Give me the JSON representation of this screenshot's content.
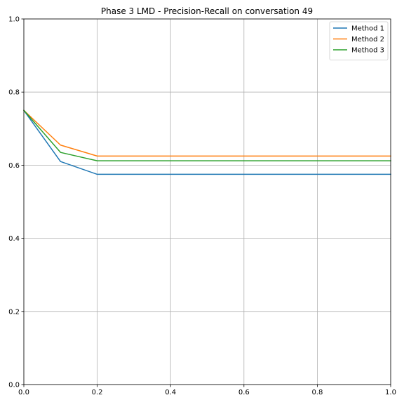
{
  "chart_data": {
    "type": "line",
    "title": "Phase 3 LMD - Precision-Recall on conversation 49",
    "xlabel": "",
    "ylabel": "",
    "xlim": [
      0,
      1
    ],
    "ylim": [
      0,
      1
    ],
    "grid": true,
    "legend_position": "top-right",
    "x_ticks": [
      "0.0",
      "0.2",
      "0.4",
      "0.6",
      "0.8",
      "1.0"
    ],
    "y_ticks": [
      "0.0",
      "0.2",
      "0.4",
      "0.6",
      "0.8",
      "1.0"
    ],
    "series": [
      {
        "name": "Method 1",
        "color": "#1f77b4",
        "x": [
          0.0,
          0.1,
          0.2,
          0.3,
          0.4,
          0.5,
          0.6,
          0.7,
          0.8,
          0.9,
          1.0
        ],
        "y": [
          0.75,
          0.61,
          0.575,
          0.575,
          0.575,
          0.575,
          0.575,
          0.575,
          0.575,
          0.575,
          0.575
        ]
      },
      {
        "name": "Method 2",
        "color": "#ff7f0e",
        "x": [
          0.0,
          0.1,
          0.2,
          0.3,
          0.4,
          0.5,
          0.6,
          0.7,
          0.8,
          0.9,
          1.0
        ],
        "y": [
          0.75,
          0.655,
          0.625,
          0.625,
          0.625,
          0.625,
          0.625,
          0.625,
          0.625,
          0.625,
          0.625
        ]
      },
      {
        "name": "Method 3",
        "color": "#2ca02c",
        "x": [
          0.0,
          0.1,
          0.2,
          0.3,
          0.4,
          0.5,
          0.6,
          0.7,
          0.8,
          0.9,
          1.0
        ],
        "y": [
          0.75,
          0.635,
          0.612,
          0.612,
          0.612,
          0.612,
          0.612,
          0.612,
          0.612,
          0.612,
          0.612
        ]
      }
    ]
  }
}
